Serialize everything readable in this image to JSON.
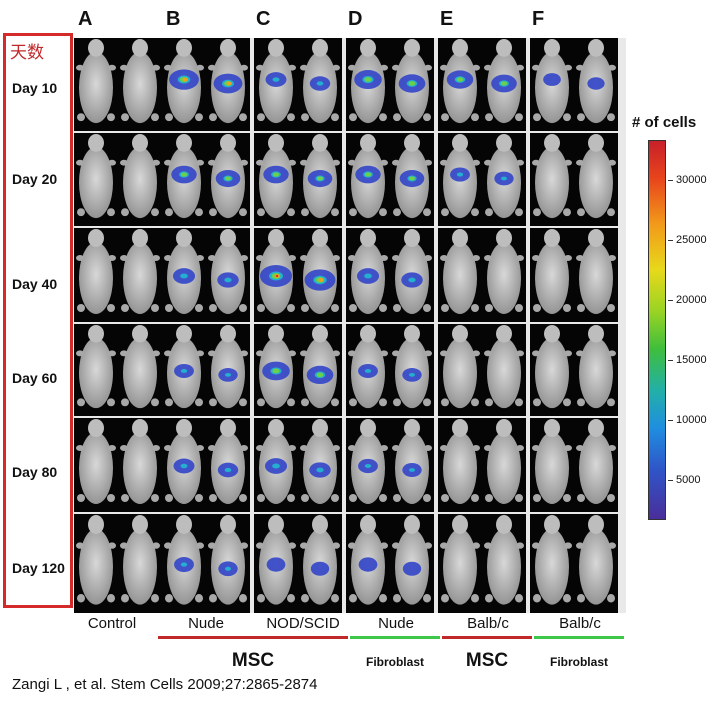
{
  "columns": [
    "A",
    "B",
    "C",
    "D",
    "E",
    "F"
  ],
  "row_title": "天数",
  "days": [
    "Day 10",
    "Day 20",
    "Day 40",
    "Day 60",
    "Day 80",
    "Day 120"
  ],
  "groups": [
    "Control",
    "Nude",
    "NOD/SCID",
    "Nude",
    "Balb/c",
    "Balb/c"
  ],
  "categories": [
    "MSC",
    "Fibroblast",
    "MSC",
    "Fibroblast"
  ],
  "colorbar": {
    "title": "# of cells",
    "ticks": [
      "30000",
      "25000",
      "20000",
      "15000",
      "10000",
      "5000"
    ]
  },
  "citation": "Zangi L , et al. Stem Cells 2009;27:2865-2874",
  "colors": {
    "frame": "#d42a2a",
    "msc_line": "#c0282a",
    "fibroblast_line": "#3ec84a"
  }
}
